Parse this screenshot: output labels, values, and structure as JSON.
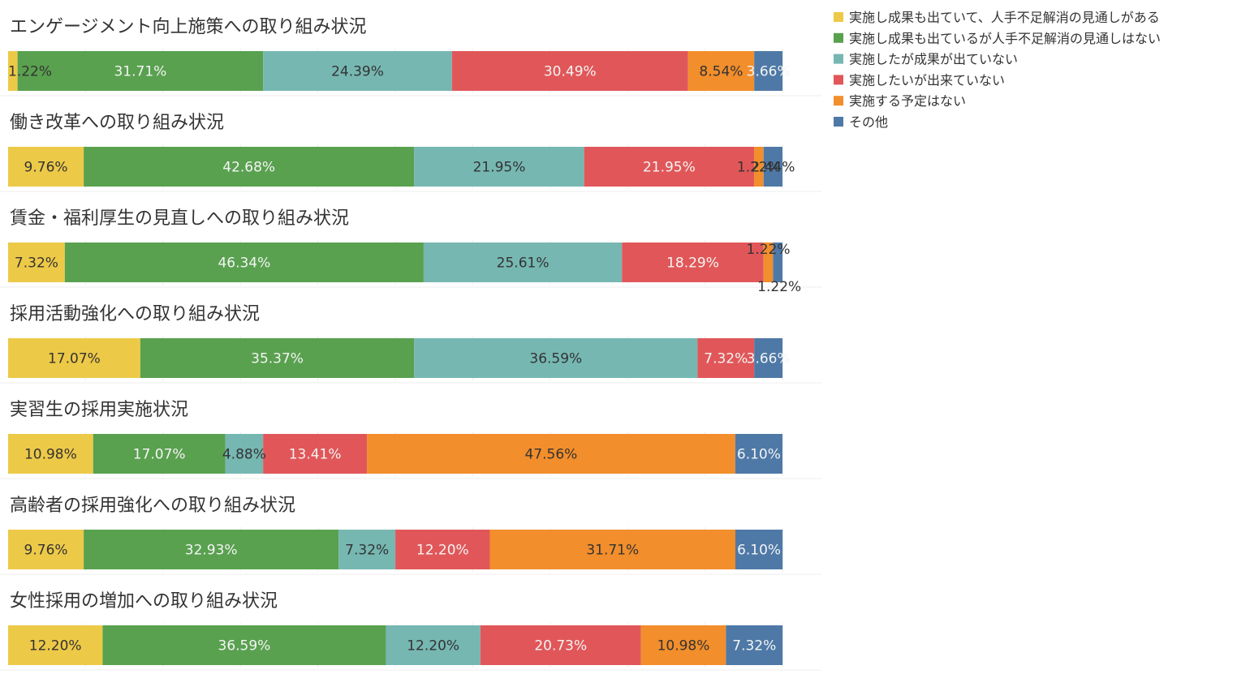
{
  "colors": {
    "background": "#ffffff",
    "text": "#333333",
    "gridline": "#ececec",
    "label_on_light": "#333333",
    "label_on_dark": "#f4f4f4"
  },
  "legend": {
    "placement": "top-right",
    "items": [
      {
        "label": "実施し成果も出ていて、人手不足解消の見通しがある",
        "color": "#EDC948"
      },
      {
        "label": "実施し成果も出ているが人手不足解消の見通しはない",
        "color": "#59A14F"
      },
      {
        "label": "実施したが成果が出ていない",
        "color": "#76B7B2"
      },
      {
        "label": "実施したいが出来ていない",
        "color": "#E15759"
      },
      {
        "label": "実施する予定はない",
        "color": "#F28E2B"
      },
      {
        "label": "その他",
        "color": "#4E79A7"
      }
    ]
  },
  "chart_data": [
    {
      "type": "bar",
      "stacked": true,
      "orientation": "horizontal",
      "title": "エンゲージメント向上施策への取り組み状況",
      "values": [
        1.22,
        31.71,
        24.39,
        30.49,
        8.54,
        3.66
      ],
      "labels": [
        "1.22%",
        "31.71%",
        "24.39%",
        "30.49%",
        "8.54%",
        "3.66%"
      ]
    },
    {
      "type": "bar",
      "stacked": true,
      "orientation": "horizontal",
      "title": "働き改革への取り組み状況",
      "values": [
        9.76,
        42.68,
        21.95,
        21.95,
        1.22,
        2.44
      ],
      "labels": [
        "9.76%",
        "42.68%",
        "21.95%",
        "21.95%",
        "1.22%",
        "2.44%"
      ]
    },
    {
      "type": "bar",
      "stacked": true,
      "orientation": "horizontal",
      "title": "賃金・福利厚生の見直しへの取り組み状況",
      "values": [
        7.32,
        46.34,
        25.61,
        18.29,
        1.22,
        1.22
      ],
      "labels": [
        "7.32%",
        "46.34%",
        "25.61%",
        "18.29%",
        "1.22%",
        "1.22%"
      ]
    },
    {
      "type": "bar",
      "stacked": true,
      "orientation": "horizontal",
      "title": "採用活動強化への取り組み状況",
      "values": [
        17.07,
        35.37,
        36.59,
        7.32,
        0,
        3.66
      ],
      "labels": [
        "17.07%",
        "35.37%",
        "36.59%",
        "7.32%",
        "",
        "3.66%"
      ]
    },
    {
      "type": "bar",
      "stacked": true,
      "orientation": "horizontal",
      "title": "実習生の採用実施状況",
      "values": [
        10.98,
        17.07,
        4.88,
        13.41,
        47.56,
        6.1
      ],
      "labels": [
        "10.98%",
        "17.07%",
        "4.88%",
        "13.41%",
        "47.56%",
        "6.10%"
      ]
    },
    {
      "type": "bar",
      "stacked": true,
      "orientation": "horizontal",
      "title": "高齢者の採用強化への取り組み状況",
      "values": [
        9.76,
        32.93,
        7.32,
        12.2,
        31.71,
        6.1
      ],
      "labels": [
        "9.76%",
        "32.93%",
        "7.32%",
        "12.20%",
        "31.71%",
        "6.10%"
      ]
    },
    {
      "type": "bar",
      "stacked": true,
      "orientation": "horizontal",
      "title": "女性採用の増加への取り組み状況",
      "values": [
        12.2,
        36.59,
        12.2,
        20.73,
        10.98,
        7.32
      ],
      "labels": [
        "12.20%",
        "36.59%",
        "12.20%",
        "20.73%",
        "10.98%",
        "7.32%"
      ]
    }
  ]
}
